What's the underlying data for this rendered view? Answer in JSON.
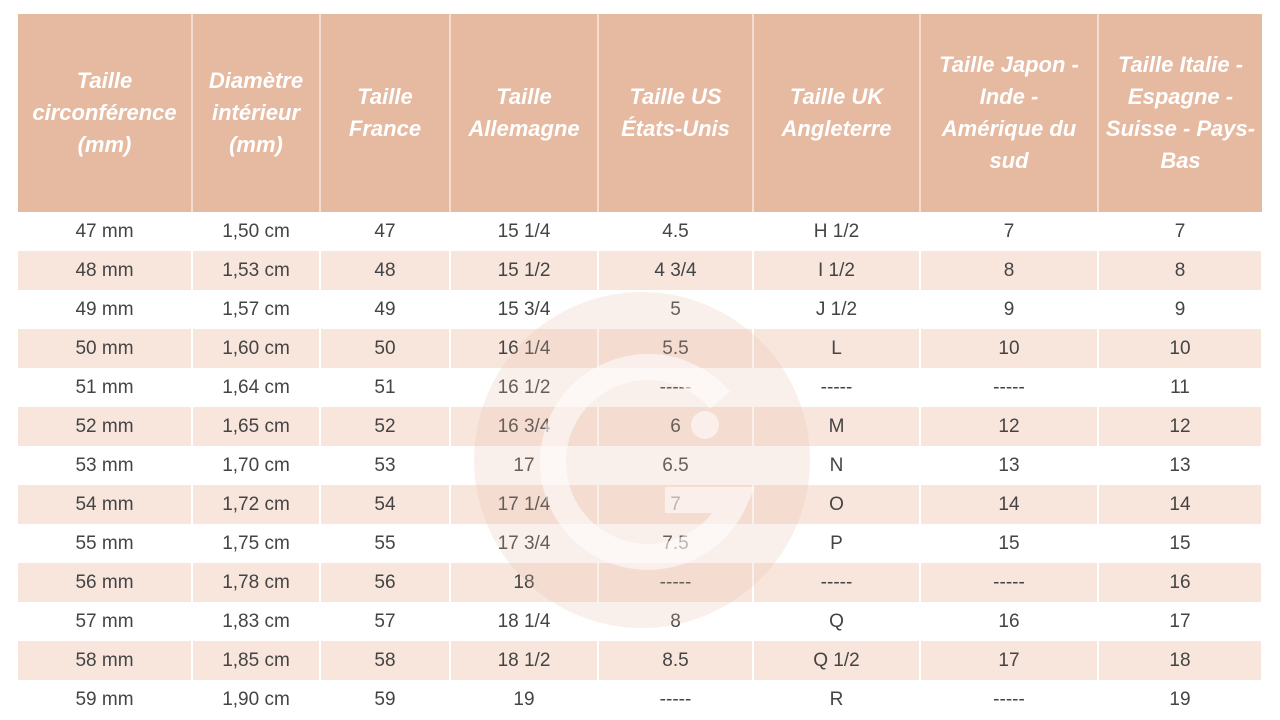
{
  "table": {
    "headers": [
      "Taille circonférence (mm)",
      "Diamètre intérieur (mm)",
      "Taille France",
      "Taille Allemagne",
      "Taille US États-Unis",
      "Taille UK Angleterre",
      "Taille Japon - Inde - Amérique du sud",
      "Taille Italie - Espagne - Suisse - Pays-Bas"
    ],
    "rows": [
      [
        "47 mm",
        "1,50 cm",
        "47",
        "15 1/4",
        "4.5",
        "H 1/2",
        "7",
        "7"
      ],
      [
        "48 mm",
        "1,53 cm",
        "48",
        "15 1/2",
        "4 3/4",
        "I 1/2",
        "8",
        "8"
      ],
      [
        "49 mm",
        "1,57 cm",
        "49",
        "15 3/4",
        "5",
        "J 1/2",
        "9",
        "9"
      ],
      [
        "50 mm",
        "1,60 cm",
        "50",
        "16 1/4",
        "5.5",
        "L",
        "10",
        "10"
      ],
      [
        "51 mm",
        "1,64 cm",
        "51",
        "16 1/2",
        "-----",
        "-----",
        "-----",
        "11"
      ],
      [
        "52 mm",
        "1,65 cm",
        "52",
        "16 3/4",
        "6",
        "M",
        "12",
        "12"
      ],
      [
        "53 mm",
        "1,70 cm",
        "53",
        "17",
        "6.5",
        "N",
        "13",
        "13"
      ],
      [
        "54 mm",
        "1,72 cm",
        "54",
        "17 1/4",
        "7",
        "O",
        "14",
        "14"
      ],
      [
        "55 mm",
        "1,75 cm",
        "55",
        "17 3/4",
        "7.5",
        "P",
        "15",
        "15"
      ],
      [
        "56 mm",
        "1,78 cm",
        "56",
        "18",
        "-----",
        "-----",
        "-----",
        "16"
      ],
      [
        "57 mm",
        "1,83 cm",
        "57",
        "18 1/4",
        "8",
        "Q",
        "16",
        "17"
      ],
      [
        "58 mm",
        "1,85 cm",
        "58",
        "18 1/2",
        "8.5",
        "Q 1/2",
        "17",
        "18"
      ],
      [
        "59 mm",
        "1,90 cm",
        "59",
        "19",
        "-----",
        "R",
        "-----",
        "19"
      ]
    ]
  }
}
